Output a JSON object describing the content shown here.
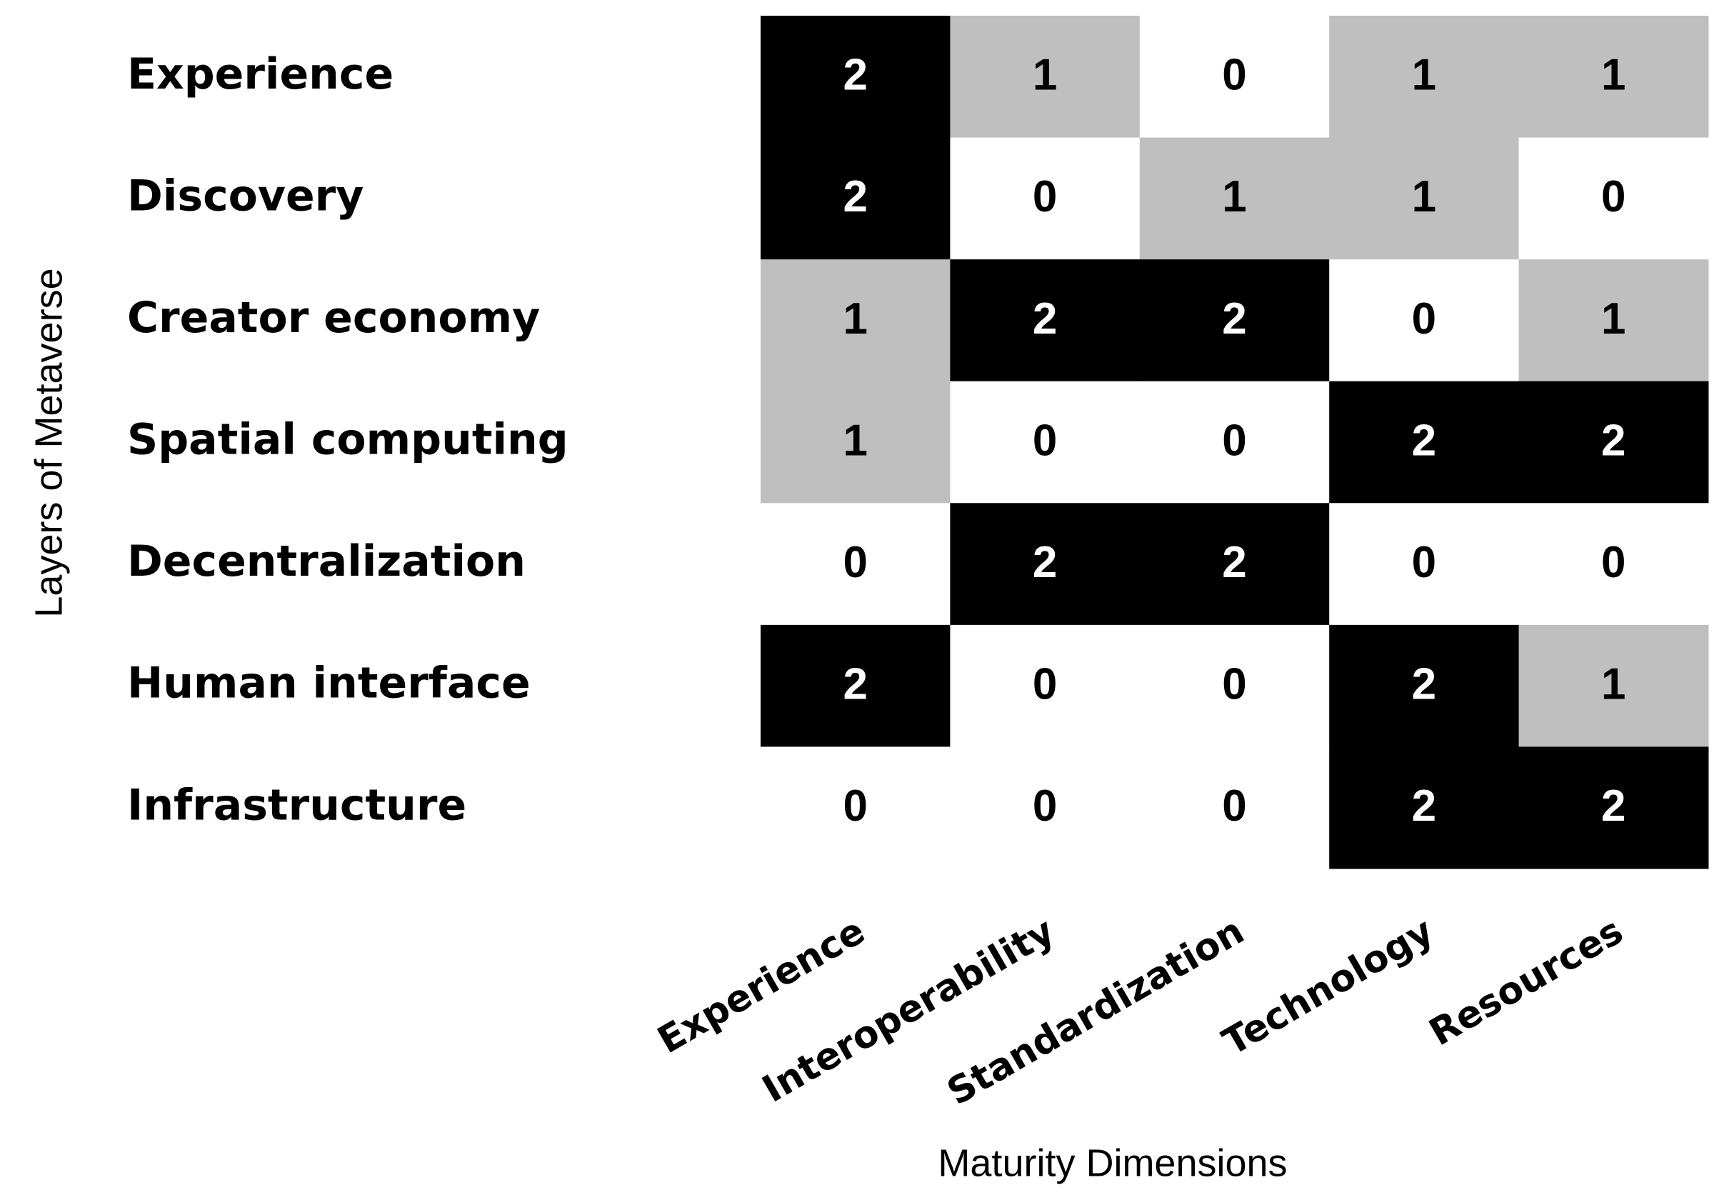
{
  "chart_data": {
    "type": "heatmap",
    "x_label": "Maturity Dimensions",
    "y_label": "Layers of Metaverse",
    "x_categories": [
      "Experience",
      "Interoperability",
      "Standardization",
      "Technology",
      "Resources"
    ],
    "y_categories": [
      "Experience",
      "Discovery",
      "Creator economy",
      "Spatial computing",
      "Decentralization",
      "Human interface",
      "Infrastructure"
    ],
    "values": [
      [
        2,
        1,
        0,
        1,
        1
      ],
      [
        2,
        0,
        1,
        1,
        0
      ],
      [
        1,
        2,
        2,
        0,
        1
      ],
      [
        1,
        0,
        0,
        2,
        2
      ],
      [
        0,
        2,
        2,
        0,
        0
      ],
      [
        2,
        0,
        0,
        2,
        1
      ],
      [
        0,
        0,
        0,
        2,
        2
      ]
    ],
    "colors": [
      "#ffffff",
      "#bfbfbf",
      "#000000"
    ],
    "label_colors": [
      "#000000",
      "#000000",
      "#ffffff"
    ]
  }
}
